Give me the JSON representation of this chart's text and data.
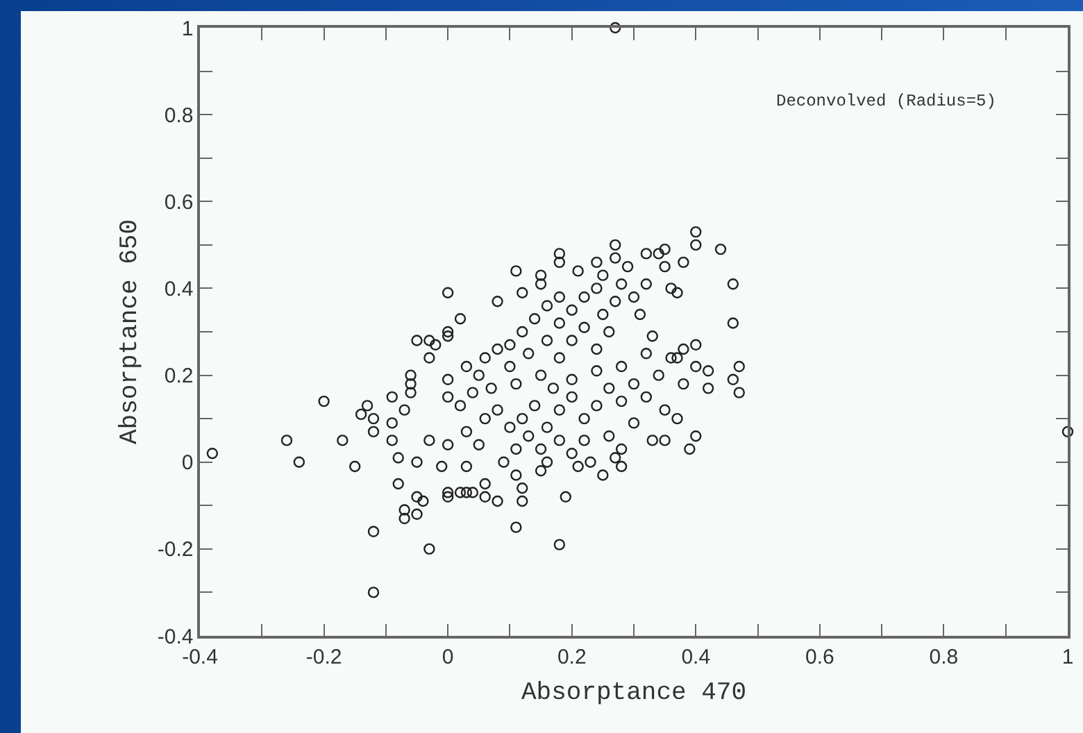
{
  "chart_data": {
    "type": "scatter",
    "xlabel": "Absorptance 470",
    "ylabel": "Absorptance 650",
    "annotations": [
      "Deconvolved (Radius=5)"
    ],
    "marker": "circle",
    "grid": false,
    "xlim": [
      -0.4,
      1
    ],
    "ylim": [
      -0.4,
      1
    ],
    "xticks": [
      -0.4,
      {
        "value": -0.3,
        "label": null
      },
      -0.2,
      {
        "value": -0.1,
        "label": null
      },
      0,
      {
        "value": 0.1,
        "label": null
      },
      0.2,
      {
        "value": 0.3,
        "label": null
      },
      0.4,
      {
        "value": 0.5,
        "label": null
      },
      0.6,
      {
        "value": 0.7,
        "label": null
      },
      0.8,
      {
        "value": 0.9,
        "label": null
      },
      1
    ],
    "yticks": [
      -0.4,
      {
        "value": -0.3,
        "label": null
      },
      -0.2,
      {
        "value": -0.1,
        "label": null
      },
      0,
      {
        "value": 0.1,
        "label": null
      },
      0.2,
      {
        "value": 0.3,
        "label": null
      },
      0.4,
      {
        "value": 0.5,
        "label": null
      },
      0.6,
      {
        "value": 0.7,
        "label": null
      },
      0.8,
      {
        "value": 0.9,
        "label": null
      },
      1
    ],
    "series": [
      {
        "color": "#222222",
        "x": [
          -0.38,
          -0.26,
          -0.24,
          -0.2,
          -0.17,
          -0.15,
          -0.14,
          -0.13,
          -0.12,
          -0.12,
          -0.12,
          -0.12,
          -0.09,
          -0.09,
          -0.09,
          -0.08,
          -0.08,
          -0.07,
          -0.07,
          -0.06,
          -0.06,
          -0.06,
          -0.07,
          -0.05,
          -0.05,
          -0.05,
          -0.05,
          -0.03,
          -0.03,
          -0.04,
          -0.03,
          -0.03,
          -0.02,
          0.0,
          0.0,
          0.02,
          0.0,
          -0.01,
          0.0,
          0.02,
          0.04,
          0.0,
          0.03,
          0.0,
          0.02,
          0.04,
          0.03,
          0.03,
          0.08,
          0.11,
          0.12,
          0.15,
          0.15,
          0.18,
          0.18,
          0.21,
          0.24,
          0.25,
          0.27,
          0.27,
          0.29,
          0.32,
          0.34,
          0.35,
          0.35,
          0.38,
          0.4,
          0.4,
          0.44,
          0.36,
          0.37,
          0.32,
          0.46,
          0.46,
          0.31,
          0.47,
          0.46,
          0.47,
          0.42,
          0.4,
          0.37,
          0.33,
          0.0,
          0.4,
          0.39,
          0.35,
          0.28,
          0.25,
          0.28,
          0.21,
          0.19,
          0.18,
          0.11,
          0.12,
          0.12,
          0.11,
          0.08,
          0.06,
          0.06,
          0.03,
          0.0,
          0.05,
          0.09,
          0.15,
          0.16,
          0.1,
          0.12,
          0.14,
          0.16,
          0.18,
          0.18,
          0.2,
          0.22,
          0.24,
          0.16,
          0.13,
          0.08,
          0.06,
          0.1,
          0.2,
          0.22,
          0.25,
          0.27,
          0.28,
          0.3,
          0.26,
          0.24,
          0.18,
          0.15,
          0.05,
          0.07,
          0.11,
          0.12,
          0.14,
          0.16,
          0.18,
          0.2,
          0.22,
          0.24,
          0.26,
          0.28,
          0.3,
          0.32,
          0.34,
          0.36,
          0.38,
          0.35,
          0.3,
          0.26,
          0.22,
          0.18,
          0.15,
          0.2,
          0.24,
          0.28,
          0.32,
          0.17,
          0.13,
          0.1,
          0.08,
          0.06,
          0.4,
          0.42,
          0.38,
          0.33,
          0.37,
          0.27,
          0.23,
          0.2,
          0.11,
          0.27,
          1.0
        ],
        "values": [
          0.02,
          0.05,
          0.0,
          0.14,
          0.05,
          -0.01,
          0.11,
          0.13,
          0.1,
          0.07,
          -0.16,
          -0.3,
          0.15,
          0.09,
          0.05,
          0.01,
          -0.05,
          -0.11,
          -0.13,
          0.2,
          0.18,
          0.16,
          0.12,
          -0.08,
          -0.12,
          0.0,
          0.28,
          -0.2,
          0.05,
          -0.09,
          0.28,
          0.24,
          0.27,
          0.39,
          0.29,
          0.33,
          0.19,
          -0.01,
          -0.07,
          -0.07,
          -0.07,
          0.04,
          -0.01,
          0.15,
          0.13,
          0.16,
          0.22,
          0.07,
          0.37,
          0.44,
          0.39,
          0.43,
          0.41,
          0.48,
          0.46,
          0.44,
          0.46,
          0.43,
          0.5,
          0.47,
          0.45,
          0.48,
          0.48,
          0.49,
          0.45,
          0.46,
          0.53,
          0.5,
          0.49,
          0.4,
          0.39,
          0.41,
          0.41,
          0.32,
          0.34,
          0.22,
          0.19,
          0.16,
          0.21,
          0.27,
          0.24,
          0.29,
          0.3,
          0.06,
          0.03,
          0.05,
          -0.01,
          -0.03,
          0.03,
          -0.01,
          -0.08,
          -0.19,
          -0.15,
          -0.09,
          -0.06,
          -0.03,
          -0.09,
          -0.05,
          -0.08,
          -0.07,
          -0.08,
          0.04,
          0.0,
          -0.02,
          0.0,
          0.27,
          0.3,
          0.33,
          0.36,
          0.38,
          0.32,
          0.35,
          0.38,
          0.4,
          0.28,
          0.25,
          0.26,
          0.24,
          0.22,
          0.28,
          0.31,
          0.34,
          0.37,
          0.41,
          0.38,
          0.3,
          0.26,
          0.24,
          0.2,
          0.2,
          0.17,
          0.18,
          0.1,
          0.13,
          0.08,
          0.12,
          0.15,
          0.1,
          0.13,
          0.17,
          0.14,
          0.18,
          0.15,
          0.2,
          0.24,
          0.26,
          0.12,
          0.09,
          0.06,
          0.05,
          0.05,
          0.03,
          0.19,
          0.21,
          0.22,
          0.25,
          0.17,
          0.06,
          0.08,
          0.12,
          0.1,
          0.22,
          0.17,
          0.18,
          0.05,
          0.1,
          0.01,
          0.0,
          0.02,
          0.03,
          1.0,
          0.07
        ]
      }
    ]
  }
}
